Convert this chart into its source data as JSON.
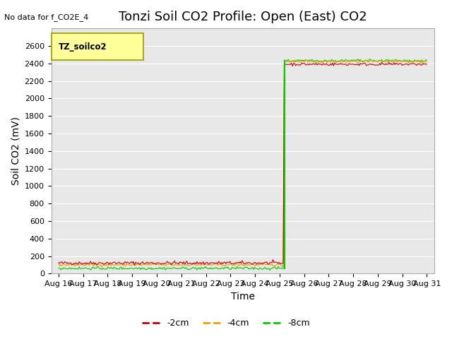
{
  "title": "Tonzi Soil CO2 Profile: Open (East) CO2",
  "no_data_text": "No data for f_CO2E_4",
  "ylabel": "Soil CO2 (mV)",
  "xlabel": "Time",
  "ylim": [
    0,
    2800
  ],
  "yticks": [
    0,
    200,
    400,
    600,
    800,
    1000,
    1200,
    1400,
    1600,
    1800,
    2000,
    2200,
    2400,
    2600
  ],
  "x_tick_labels": [
    "Aug 16",
    "Aug 17",
    "Aug 18",
    "Aug 19",
    "Aug 20",
    "Aug 21",
    "Aug 22",
    "Aug 23",
    "Aug 24",
    "Aug 25",
    "Aug 26",
    "Aug 27",
    "Aug 28",
    "Aug 29",
    "Aug 30",
    "Aug 31"
  ],
  "pre_jump_red": 120,
  "pre_jump_orange": 100,
  "pre_jump_green": 60,
  "post_jump_red": 2390,
  "post_jump_orange": 2420,
  "post_jump_green": 2430,
  "color_red": "#cc0000",
  "color_orange": "#ff9900",
  "color_green": "#00cc00",
  "bg_color": "#e8e8e8",
  "legend_box_color": "#ffff99",
  "legend_box_edge": "#999900",
  "legend_label_text": "TZ_soilco2",
  "series_labels": [
    "-2cm",
    "-4cm",
    "-8cm"
  ],
  "series_colors": [
    "#cc0000",
    "#ff9900",
    "#00cc00"
  ],
  "title_fontsize": 13,
  "axis_label_fontsize": 10,
  "tick_fontsize": 8
}
